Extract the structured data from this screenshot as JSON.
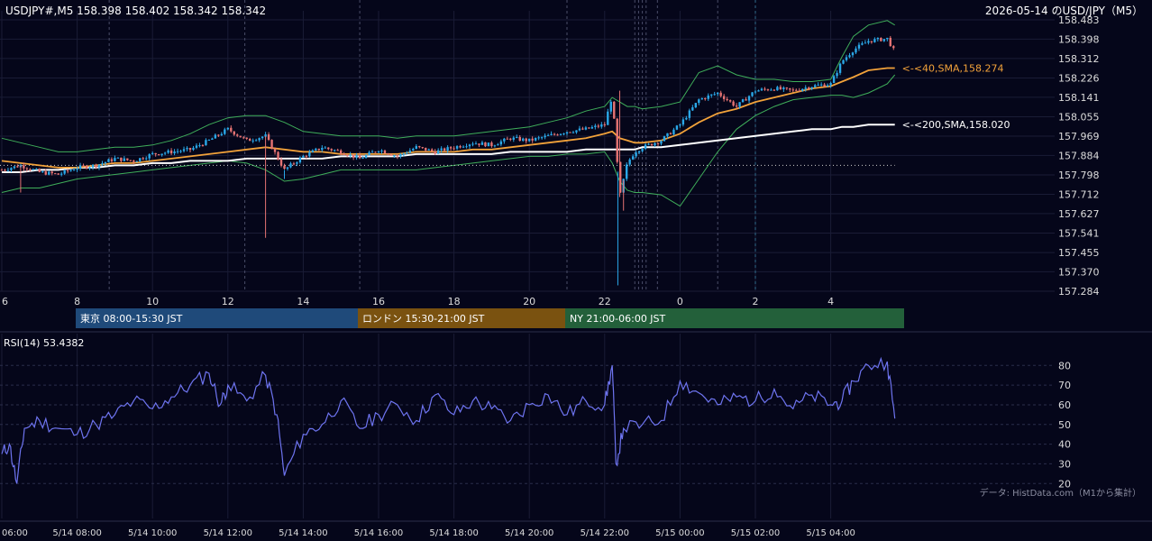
{
  "header": {
    "symbol_info": "USDJPY#,M5 158.398 158.402 158.342 158.342",
    "date_title": "2026-05-14 のUSD/JPY（M5）"
  },
  "price_axis": {
    "ticks": [
      "158.483",
      "158.398",
      "158.312",
      "158.226",
      "158.141",
      "158.055",
      "157.969",
      "157.884",
      "157.798",
      "157.712",
      "157.627",
      "157.541",
      "157.455",
      "157.370",
      "157.284"
    ],
    "ylim": [
      157.284,
      158.483
    ]
  },
  "top_time_axis": {
    "ticks": [
      "6",
      "8",
      "10",
      "12",
      "14",
      "16",
      "18",
      "20",
      "22",
      "0",
      "2",
      "4"
    ]
  },
  "ma_labels": {
    "sma40": "<-<40,SMA,158.274",
    "sma200": "<-<200,SMA,158.020"
  },
  "sessions": [
    {
      "label": "東京 08:00-15:30 JST",
      "color": "#1f4a7a"
    },
    {
      "label": "ロンドン 15:30-21:00 JST",
      "color": "#7a5210"
    },
    {
      "label": "NY 21:00-06:00 JST",
      "color": "#23603a"
    }
  ],
  "rsi_panel": {
    "title": "RSI(14) 53.4382",
    "ticks": [
      "80",
      "70",
      "60",
      "50",
      "40",
      "30",
      "20"
    ],
    "ylim": [
      16,
      87
    ]
  },
  "bottom_time_axis": {
    "ticks": [
      "06:00",
      "5/14 08:00",
      "5/14 10:00",
      "5/14 12:00",
      "5/14 14:00",
      "5/14 16:00",
      "5/14 18:00",
      "5/14 20:00",
      "5/14 22:00",
      "5/15 00:00",
      "5/15 02:00",
      "5/15 04:00"
    ]
  },
  "credit": "データ: HistData.com（M1から集計）",
  "colors": {
    "background": "#05061a",
    "bull": "#2aa8e8",
    "bear": "#e57373",
    "sma40": "#f2a23a",
    "sma200": "#ffffff",
    "bollinger": "#3fae5a",
    "rsi": "#6e74f0",
    "grid": "#1a1c36"
  },
  "chart_data": {
    "type": "line",
    "price": {
      "x_hours": [
        6.0,
        6.5,
        7.0,
        7.5,
        8.0,
        8.5,
        9.0,
        9.5,
        10.0,
        10.5,
        11.0,
        11.5,
        12.0,
        12.5,
        13.0,
        13.5,
        14.0,
        14.5,
        15.0,
        15.5,
        16.0,
        16.5,
        17.0,
        17.5,
        18.0,
        18.5,
        19.0,
        19.5,
        20.0,
        20.5,
        21.0,
        21.5,
        22.0,
        22.2,
        22.4,
        22.6,
        22.8,
        23.0,
        23.5,
        24.0,
        24.5,
        25.0,
        25.5,
        26.0,
        26.5,
        27.0,
        27.5,
        28.0,
        28.3,
        28.6,
        29.0,
        29.5,
        29.7
      ],
      "close": [
        157.82,
        157.84,
        157.81,
        157.8,
        157.83,
        157.84,
        157.87,
        157.86,
        157.89,
        157.9,
        157.91,
        157.95,
        158.0,
        157.95,
        157.97,
        157.82,
        157.88,
        157.92,
        157.9,
        157.87,
        157.91,
        157.88,
        157.92,
        157.9,
        157.92,
        157.94,
        157.93,
        157.96,
        157.95,
        157.97,
        157.99,
        158.0,
        158.02,
        158.15,
        157.7,
        157.85,
        157.9,
        157.92,
        157.95,
        158.02,
        158.13,
        158.16,
        158.1,
        158.17,
        158.18,
        158.17,
        158.19,
        158.2,
        158.3,
        158.35,
        158.39,
        158.4,
        158.34
      ],
      "sma40": [
        157.86,
        157.85,
        157.84,
        157.83,
        157.83,
        157.84,
        157.85,
        157.85,
        157.86,
        157.87,
        157.88,
        157.89,
        157.9,
        157.91,
        157.92,
        157.91,
        157.9,
        157.9,
        157.89,
        157.89,
        157.89,
        157.89,
        157.9,
        157.9,
        157.9,
        157.91,
        157.91,
        157.92,
        157.93,
        157.94,
        157.95,
        157.96,
        157.98,
        157.99,
        157.96,
        157.95,
        157.94,
        157.94,
        157.95,
        157.98,
        158.03,
        158.07,
        158.09,
        158.12,
        158.14,
        158.16,
        158.18,
        158.19,
        158.21,
        158.23,
        158.26,
        158.27,
        158.27
      ],
      "sma200": [
        157.81,
        157.81,
        157.82,
        157.82,
        157.83,
        157.83,
        157.84,
        157.84,
        157.85,
        157.85,
        157.86,
        157.86,
        157.86,
        157.87,
        157.87,
        157.87,
        157.87,
        157.87,
        157.88,
        157.88,
        157.88,
        157.88,
        157.89,
        157.89,
        157.89,
        157.89,
        157.89,
        157.9,
        157.9,
        157.9,
        157.9,
        157.91,
        157.91,
        157.91,
        157.91,
        157.91,
        157.91,
        157.92,
        157.92,
        157.93,
        157.94,
        157.95,
        157.96,
        157.97,
        157.98,
        157.99,
        158.0,
        158.0,
        158.01,
        158.01,
        158.02,
        158.02,
        158.02
      ],
      "bb_upper": [
        157.96,
        157.94,
        157.92,
        157.9,
        157.9,
        157.91,
        157.92,
        157.92,
        157.93,
        157.95,
        157.98,
        158.02,
        158.05,
        158.06,
        158.06,
        158.03,
        157.99,
        157.98,
        157.97,
        157.97,
        157.97,
        157.96,
        157.97,
        157.97,
        157.97,
        157.98,
        157.99,
        158.0,
        158.01,
        158.03,
        158.05,
        158.08,
        158.1,
        158.14,
        158.12,
        158.1,
        158.1,
        158.09,
        158.1,
        158.12,
        158.25,
        158.28,
        158.24,
        158.22,
        158.22,
        158.21,
        158.21,
        158.22,
        158.32,
        158.41,
        158.46,
        158.48,
        158.46
      ],
      "bb_lower": [
        157.72,
        157.74,
        157.74,
        157.76,
        157.78,
        157.79,
        157.8,
        157.81,
        157.82,
        157.83,
        157.84,
        157.85,
        157.86,
        157.85,
        157.82,
        157.77,
        157.78,
        157.8,
        157.82,
        157.82,
        157.82,
        157.82,
        157.82,
        157.83,
        157.84,
        157.85,
        157.86,
        157.87,
        157.88,
        157.88,
        157.89,
        157.89,
        157.9,
        157.85,
        157.77,
        157.73,
        157.72,
        157.72,
        157.71,
        157.66,
        157.78,
        157.9,
        158.0,
        158.06,
        158.1,
        158.13,
        158.14,
        158.15,
        158.15,
        158.14,
        158.16,
        158.2,
        158.24
      ],
      "reference_line": 157.84
    },
    "rsi": {
      "x_hours": [
        6.0,
        6.2,
        6.4,
        6.6,
        7.0,
        7.5,
        8.0,
        8.5,
        9.0,
        9.5,
        10.0,
        10.5,
        11.0,
        11.5,
        11.8,
        12.0,
        12.5,
        13.0,
        13.3,
        13.5,
        14.0,
        14.5,
        15.0,
        15.5,
        16.0,
        16.5,
        17.0,
        17.5,
        18.0,
        18.5,
        19.0,
        19.5,
        20.0,
        20.5,
        21.0,
        21.5,
        22.0,
        22.2,
        22.3,
        22.5,
        23.0,
        23.5,
        24.0,
        24.5,
        25.0,
        25.5,
        26.0,
        26.5,
        27.0,
        27.5,
        28.0,
        28.3,
        28.6,
        29.0,
        29.5,
        29.7
      ],
      "values": [
        35,
        40,
        20,
        48,
        52,
        48,
        45,
        50,
        55,
        62,
        58,
        64,
        70,
        76,
        60,
        70,
        62,
        75,
        55,
        24,
        45,
        50,
        62,
        48,
        55,
        60,
        52,
        65,
        55,
        62,
        58,
        52,
        60,
        65,
        55,
        62,
        60,
        80,
        30,
        48,
        50,
        52,
        72,
        66,
        60,
        64,
        62,
        68,
        58,
        65,
        60,
        62,
        72,
        80,
        82,
        53
      ]
    }
  }
}
